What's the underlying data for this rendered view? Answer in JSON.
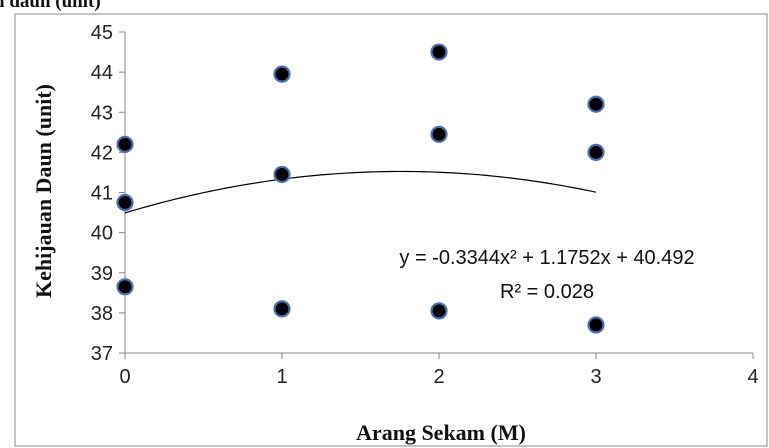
{
  "header_fragment": "n daun (unit)",
  "chart_data": {
    "type": "scatter",
    "xlabel": "Arang Sekam (M)",
    "ylabel": "Kehijauan Daun (unit)",
    "xlim": [
      0,
      4
    ],
    "ylim": [
      37,
      45
    ],
    "x_ticks": [
      "0",
      "1",
      "2",
      "3",
      "4"
    ],
    "y_ticks": [
      "37",
      "38",
      "39",
      "40",
      "41",
      "42",
      "43",
      "44",
      "45"
    ],
    "grid": false,
    "series": [
      {
        "points": [
          [
            0,
            42.2
          ],
          [
            0,
            40.75
          ],
          [
            0,
            38.65
          ],
          [
            1,
            43.95
          ],
          [
            1,
            41.45
          ],
          [
            1,
            38.1
          ],
          [
            2,
            44.5
          ],
          [
            2,
            42.45
          ],
          [
            2,
            38.05
          ],
          [
            3,
            43.2
          ],
          [
            3,
            42.0
          ],
          [
            3,
            37.7
          ]
        ],
        "marker_color": "#000000",
        "marker_edge": "#4a6fb0"
      }
    ],
    "trendline": {
      "type": "polynomial",
      "coefficients": [
        -0.3344,
        1.1752,
        40.492
      ],
      "x_range": [
        0,
        3
      ],
      "equation": "y = -0.3344x² + 1.1752x + 40.492",
      "r_squared": "R² = 0.028"
    }
  }
}
